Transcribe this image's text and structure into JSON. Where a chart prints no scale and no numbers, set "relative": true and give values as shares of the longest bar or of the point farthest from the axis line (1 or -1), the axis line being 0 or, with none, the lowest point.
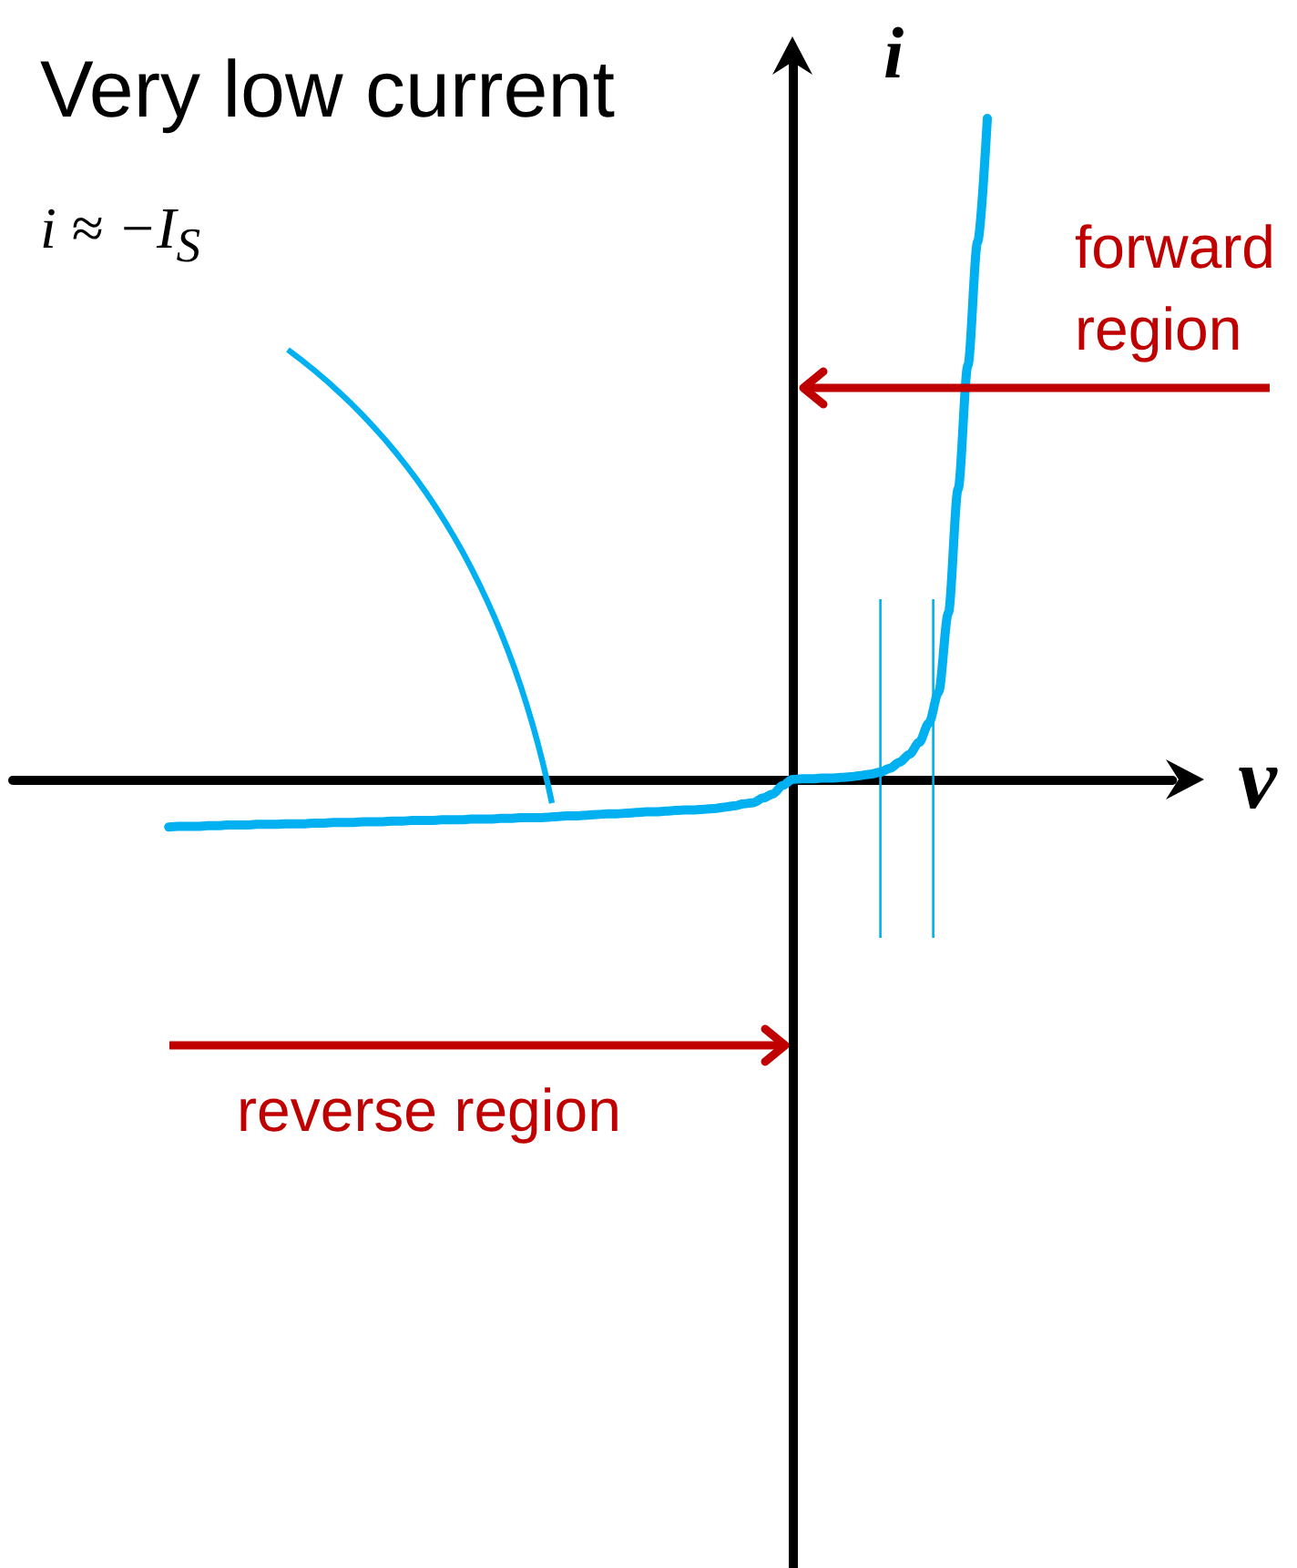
{
  "chart_data": {
    "type": "line",
    "xlabel": "v",
    "ylabel": "i",
    "relative": true,
    "tick_labels": false,
    "categories": [
      null,
      null,
      null,
      null,
      null,
      null,
      null,
      null,
      null,
      null,
      null,
      null,
      null,
      null,
      null,
      null,
      null,
      null,
      null,
      null,
      null,
      null,
      null,
      null,
      null,
      null,
      null,
      null,
      null,
      null,
      null,
      null,
      null,
      null,
      null,
      null,
      null,
      null,
      null,
      null,
      null,
      null,
      null,
      null,
      null,
      null,
      null,
      null,
      null,
      null,
      null,
      null,
      null,
      null,
      null,
      null,
      null,
      null,
      null,
      null,
      null,
      null,
      null,
      null,
      null,
      null,
      null,
      null,
      null,
      null,
      null,
      null,
      null,
      null,
      null,
      null,
      null,
      null,
      null,
      null,
      null,
      null,
      null,
      null,
      null,
      null,
      null,
      null,
      null,
      null,
      null,
      null,
      null,
      null,
      null,
      null,
      null,
      null,
      null,
      null,
      null,
      null,
      null,
      null,
      null,
      null,
      null,
      null,
      null,
      null,
      null,
      null,
      null,
      null,
      null,
      null,
      null,
      null,
      null,
      null
    ],
    "series": [
      {
        "color": "#00b0f0",
        "values": [
          null,
          null,
          null,
          null,
          null,
          null,
          null,
          null,
          null,
          null,
          null,
          null,
          null,
          null,
          null,
          null,
          -0.072,
          -0.071,
          -0.071,
          -0.071,
          -0.07,
          -0.07,
          -0.069,
          -0.069,
          -0.069,
          -0.068,
          -0.068,
          -0.068,
          -0.067,
          -0.067,
          -0.067,
          -0.066,
          -0.066,
          -0.065,
          -0.065,
          -0.065,
          -0.064,
          -0.064,
          -0.064,
          -0.063,
          -0.063,
          -0.062,
          -0.062,
          -0.062,
          -0.061,
          -0.061,
          -0.061,
          -0.06,
          -0.06,
          -0.06,
          -0.059,
          -0.059,
          -0.058,
          -0.058,
          -0.058,
          -0.057,
          -0.056,
          -0.055,
          -0.055,
          -0.054,
          -0.053,
          -0.052,
          -0.052,
          -0.051,
          -0.05,
          -0.049,
          -0.049,
          -0.048,
          -0.047,
          -0.046,
          -0.046,
          -0.045,
          -0.044,
          -0.042,
          -0.04,
          -0.037,
          -0.035,
          -0.028,
          -0.022,
          -0.009,
          0,
          0.001,
          0.001,
          0.002,
          0.002,
          0.003,
          0.004,
          0.006,
          0.008,
          0.011,
          0.017,
          0.026,
          0.038,
          0.056,
          0.085,
          0.132,
          0.252,
          0.439,
          0.626,
          0.813,
          1,
          null,
          null,
          null,
          null,
          null,
          null,
          null,
          null,
          null,
          null,
          null,
          null,
          null,
          null,
          null,
          null,
          null,
          null,
          null
        ]
      }
    ],
    "annotations": [
      "Very low current",
      "i ≈ −I$_{S}$",
      "forward region",
      "reverse region"
    ]
  }
}
